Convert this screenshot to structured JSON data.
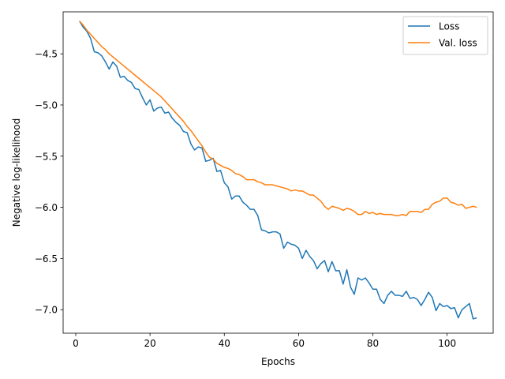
{
  "chart_data": {
    "type": "line",
    "title": "",
    "xlabel": "Epochs",
    "ylabel": "Negative log-likelihood",
    "xlim": [
      -3.4,
      112.4
    ],
    "ylim": [
      -7.23,
      -4.09
    ],
    "xticks": [
      0,
      20,
      40,
      60,
      80,
      100
    ],
    "xtick_labels": [
      "0",
      "20",
      "40",
      "60",
      "80",
      "100"
    ],
    "yticks": [
      -4.5,
      -5.0,
      -5.5,
      -6.0,
      -6.5,
      -7.0
    ],
    "ytick_labels": [
      "−4.5",
      "−5.0",
      "−5.5",
      "−6.0",
      "−6.5",
      "−7.0"
    ],
    "grid": false,
    "legend_position": "top-right",
    "x": [
      1,
      2,
      3,
      4,
      5,
      6,
      7,
      8,
      9,
      10,
      11,
      12,
      13,
      14,
      15,
      16,
      17,
      18,
      19,
      20,
      21,
      22,
      23,
      24,
      25,
      26,
      27,
      28,
      29,
      30,
      31,
      32,
      33,
      34,
      35,
      36,
      37,
      38,
      39,
      40,
      41,
      42,
      43,
      44,
      45,
      46,
      47,
      48,
      49,
      50,
      51,
      52,
      53,
      54,
      55,
      56,
      57,
      58,
      59,
      60,
      61,
      62,
      63,
      64,
      65,
      66,
      67,
      68,
      69,
      70,
      71,
      72,
      73,
      74,
      75,
      76,
      77,
      78,
      79,
      80,
      81,
      82,
      83,
      84,
      85,
      86,
      87,
      88,
      89,
      90,
      91,
      92,
      93,
      94,
      95,
      96,
      97,
      98,
      99,
      100,
      101,
      102,
      103,
      104,
      105,
      106,
      107,
      108
    ],
    "series": [
      {
        "name": "Loss",
        "color": "#1f77b4",
        "values": [
          -4.18,
          -4.24,
          -4.28,
          -4.35,
          -4.48,
          -4.49,
          -4.52,
          -4.58,
          -4.65,
          -4.58,
          -4.62,
          -4.73,
          -4.72,
          -4.76,
          -4.78,
          -4.84,
          -4.85,
          -4.93,
          -5.0,
          -4.95,
          -5.06,
          -5.03,
          -5.02,
          -5.08,
          -5.07,
          -5.13,
          -5.17,
          -5.2,
          -5.26,
          -5.27,
          -5.38,
          -5.44,
          -5.41,
          -5.42,
          -5.55,
          -5.54,
          -5.52,
          -5.65,
          -5.64,
          -5.76,
          -5.8,
          -5.92,
          -5.89,
          -5.89,
          -5.95,
          -5.98,
          -6.02,
          -6.02,
          -6.08,
          -6.22,
          -6.23,
          -6.25,
          -6.24,
          -6.24,
          -6.26,
          -6.4,
          -6.34,
          -6.36,
          -6.37,
          -6.4,
          -6.5,
          -6.42,
          -6.48,
          -6.52,
          -6.6,
          -6.55,
          -6.52,
          -6.63,
          -6.53,
          -6.62,
          -6.62,
          -6.75,
          -6.61,
          -6.78,
          -6.85,
          -6.69,
          -6.71,
          -6.69,
          -6.74,
          -6.8,
          -6.8,
          -6.9,
          -6.94,
          -6.86,
          -6.82,
          -6.86,
          -6.86,
          -6.87,
          -6.82,
          -6.89,
          -6.88,
          -6.9,
          -6.96,
          -6.9,
          -6.83,
          -6.88,
          -7.01,
          -6.94,
          -6.97,
          -6.96,
          -6.99,
          -6.98,
          -7.08,
          -7.0,
          -6.97,
          -6.94,
          -7.09,
          -7.08
        ]
      },
      {
        "name": "Val. loss",
        "color": "#ff7f0e",
        "values": [
          -4.18,
          -4.22,
          -4.27,
          -4.31,
          -4.35,
          -4.39,
          -4.43,
          -4.46,
          -4.5,
          -4.53,
          -4.56,
          -4.59,
          -4.62,
          -4.65,
          -4.68,
          -4.71,
          -4.74,
          -4.77,
          -4.8,
          -4.83,
          -4.86,
          -4.89,
          -4.92,
          -4.96,
          -5.0,
          -5.04,
          -5.08,
          -5.12,
          -5.16,
          -5.21,
          -5.25,
          -5.3,
          -5.35,
          -5.4,
          -5.46,
          -5.51,
          -5.53,
          -5.57,
          -5.59,
          -5.61,
          -5.62,
          -5.64,
          -5.67,
          -5.68,
          -5.7,
          -5.73,
          -5.73,
          -5.73,
          -5.75,
          -5.76,
          -5.78,
          -5.78,
          -5.78,
          -5.79,
          -5.8,
          -5.81,
          -5.82,
          -5.84,
          -5.83,
          -5.84,
          -5.84,
          -5.86,
          -5.88,
          -5.88,
          -5.91,
          -5.94,
          -5.99,
          -6.02,
          -5.99,
          -6.0,
          -6.01,
          -6.03,
          -6.01,
          -6.02,
          -6.04,
          -6.07,
          -6.07,
          -6.04,
          -6.06,
          -6.05,
          -6.07,
          -6.06,
          -6.07,
          -6.07,
          -6.07,
          -6.08,
          -6.08,
          -6.07,
          -6.08,
          -6.04,
          -6.04,
          -6.04,
          -6.05,
          -6.02,
          -6.02,
          -5.97,
          -5.95,
          -5.94,
          -5.91,
          -5.91,
          -5.95,
          -5.96,
          -5.98,
          -5.97,
          -6.01,
          -6.0,
          -5.99,
          -6.0
        ]
      }
    ]
  }
}
